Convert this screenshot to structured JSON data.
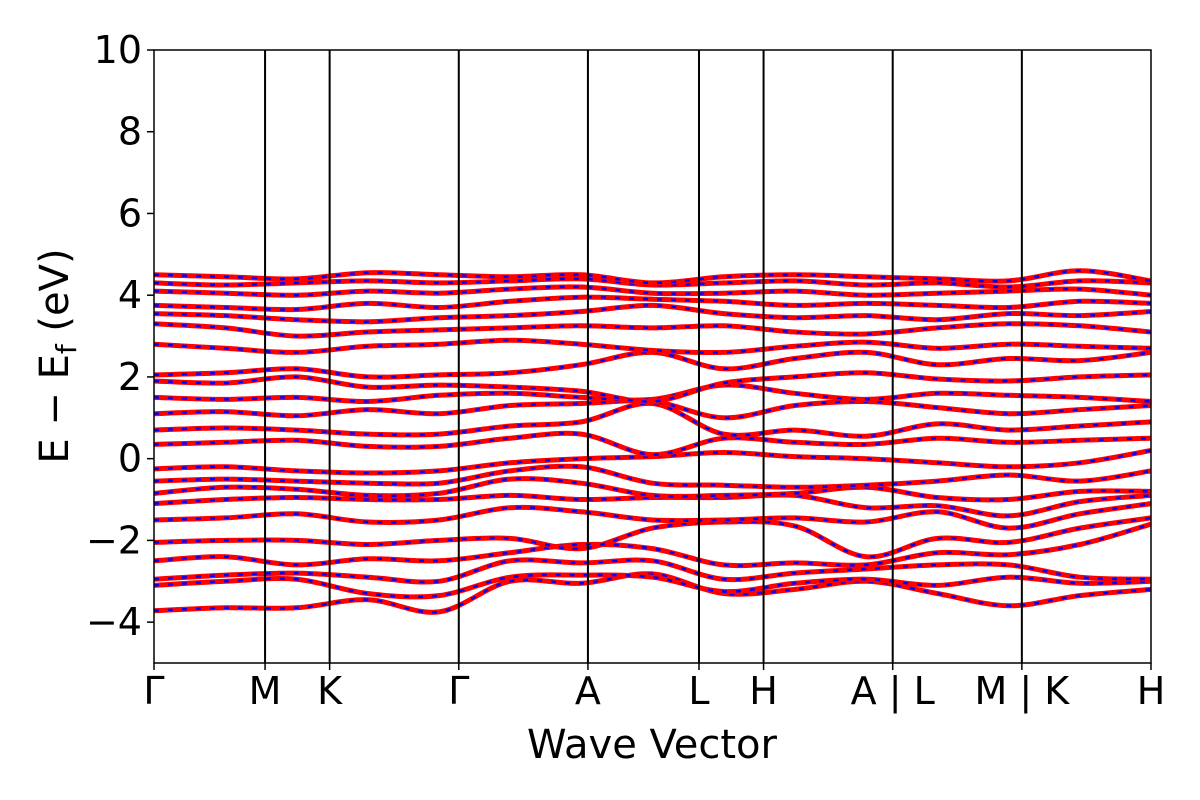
{
  "chart_data": {
    "type": "line",
    "title": "",
    "xlabel": "Wave Vector",
    "ylabel_main": "E − E",
    "ylabel_sub": "f",
    "ylabel_unit": " (eV)",
    "ylim": [
      -5,
      10
    ],
    "yticks": [
      {
        "value": -4,
        "label": "−4"
      },
      {
        "value": -2,
        "label": "−2"
      },
      {
        "value": 0,
        "label": "0"
      },
      {
        "value": 2,
        "label": "2"
      },
      {
        "value": 4,
        "label": "4"
      },
      {
        "value": 6,
        "label": "6"
      },
      {
        "value": 8,
        "label": "8"
      },
      {
        "value": 10,
        "label": "10"
      }
    ],
    "xlim": [
      0,
      7.72
    ],
    "kpoints": [
      {
        "pos": 0.0,
        "label": "Γ"
      },
      {
        "pos": 0.86,
        "label": "M"
      },
      {
        "pos": 1.36,
        "label": "K"
      },
      {
        "pos": 2.36,
        "label": "Γ"
      },
      {
        "pos": 3.36,
        "label": "A"
      },
      {
        "pos": 4.22,
        "label": "L"
      },
      {
        "pos": 4.72,
        "label": "H"
      },
      {
        "pos": 5.72,
        "label": "A | L"
      },
      {
        "pos": 6.72,
        "label": "M | K"
      },
      {
        "pos": 7.72,
        "label": "H"
      }
    ],
    "grid": false,
    "series_colors": {
      "spin_up": "#ff0000",
      "spin_down": "#0000ff"
    },
    "bands": [
      [
        -3.72,
        -3.65,
        -3.65,
        -3.45,
        -3.75,
        -3.0,
        -3.05,
        -2.82,
        -3.3,
        -3.2,
        -3.0,
        -3.3,
        -3.6,
        -3.35,
        -3.2
      ],
      [
        -3.1,
        -3.0,
        -2.95,
        -3.3,
        -3.35,
        -2.9,
        -2.85,
        -2.9,
        -3.25,
        -3.05,
        -2.95,
        -3.1,
        -2.9,
        -3.05,
        -3.0
      ],
      [
        -2.95,
        -2.85,
        -2.8,
        -2.9,
        -3.0,
        -2.5,
        -2.55,
        -2.5,
        -2.95,
        -2.8,
        -2.7,
        -2.6,
        -2.6,
        -2.9,
        -2.95
      ],
      [
        -2.5,
        -2.4,
        -2.6,
        -2.45,
        -2.5,
        -2.3,
        -2.1,
        -2.2,
        -2.6,
        -2.55,
        -2.6,
        -2.3,
        -2.35,
        -2.1,
        -1.6
      ],
      [
        -2.05,
        -2.0,
        -2.0,
        -2.1,
        -2.0,
        -1.95,
        -2.2,
        -1.7,
        -1.55,
        -1.65,
        -2.4,
        -1.95,
        -2.05,
        -1.7,
        -1.45
      ],
      [
        -1.5,
        -1.45,
        -1.35,
        -1.55,
        -1.5,
        -1.2,
        -1.3,
        -1.5,
        -1.5,
        -1.45,
        -1.55,
        -1.3,
        -1.7,
        -1.35,
        -1.1
      ],
      [
        -1.1,
        -1.0,
        -0.95,
        -1.0,
        -1.0,
        -0.9,
        -1.0,
        -0.95,
        -0.95,
        -0.9,
        -1.2,
        -1.15,
        -1.4,
        -1.05,
        -0.9
      ],
      [
        -0.85,
        -0.7,
        -0.75,
        -0.9,
        -0.85,
        -0.5,
        -0.6,
        -0.9,
        -0.9,
        -0.85,
        -0.7,
        -0.95,
        -1.0,
        -0.8,
        -0.8
      ],
      [
        -0.55,
        -0.5,
        -0.55,
        -0.6,
        -0.6,
        -0.3,
        -0.2,
        -0.6,
        -0.65,
        -0.7,
        -0.65,
        -0.55,
        -0.4,
        -0.55,
        -0.3
      ],
      [
        -0.25,
        -0.2,
        -0.3,
        -0.35,
        -0.3,
        -0.1,
        0.0,
        0.05,
        0.15,
        0.05,
        0.0,
        -0.1,
        -0.2,
        -0.1,
        0.2
      ],
      [
        0.35,
        0.4,
        0.45,
        0.3,
        0.3,
        0.5,
        0.6,
        0.1,
        0.5,
        0.4,
        0.35,
        0.5,
        0.4,
        0.45,
        0.5
      ],
      [
        0.7,
        0.75,
        0.7,
        0.6,
        0.6,
        0.8,
        0.9,
        1.35,
        0.6,
        0.7,
        0.55,
        0.85,
        0.7,
        0.8,
        0.9
      ],
      [
        1.1,
        1.15,
        1.05,
        1.2,
        1.1,
        1.3,
        1.35,
        1.4,
        1.0,
        1.3,
        1.4,
        1.25,
        1.1,
        1.2,
        1.3
      ],
      [
        1.5,
        1.45,
        1.5,
        1.4,
        1.55,
        1.6,
        1.5,
        1.45,
        1.8,
        1.6,
        1.45,
        1.6,
        1.55,
        1.5,
        1.4
      ],
      [
        1.9,
        1.85,
        2.0,
        1.75,
        1.8,
        1.75,
        1.65,
        1.4,
        1.85,
        2.0,
        2.1,
        1.95,
        1.9,
        2.0,
        2.05
      ],
      [
        2.05,
        2.1,
        2.2,
        2.0,
        2.05,
        2.1,
        2.3,
        2.6,
        2.2,
        2.45,
        2.6,
        2.3,
        2.45,
        2.4,
        2.6
      ],
      [
        2.8,
        2.7,
        2.6,
        2.75,
        2.8,
        2.9,
        2.8,
        2.65,
        2.6,
        2.75,
        2.85,
        2.7,
        2.8,
        2.75,
        2.7
      ],
      [
        3.3,
        3.2,
        3.0,
        3.1,
        3.15,
        3.2,
        3.25,
        3.2,
        3.25,
        3.1,
        3.05,
        3.2,
        3.3,
        3.25,
        3.1
      ],
      [
        3.55,
        3.5,
        3.4,
        3.35,
        3.45,
        3.5,
        3.6,
        3.75,
        3.55,
        3.45,
        3.5,
        3.4,
        3.55,
        3.5,
        3.6
      ],
      [
        3.75,
        3.7,
        3.65,
        3.8,
        3.7,
        3.85,
        3.95,
        3.9,
        3.85,
        3.75,
        3.8,
        3.75,
        3.7,
        3.85,
        3.8
      ],
      [
        4.1,
        4.05,
        4.0,
        4.1,
        4.05,
        4.15,
        4.2,
        4.05,
        4.05,
        4.1,
        4.0,
        4.05,
        4.1,
        4.15,
        4.0
      ],
      [
        4.3,
        4.25,
        4.3,
        4.35,
        4.3,
        4.35,
        4.4,
        4.25,
        4.3,
        4.35,
        4.25,
        4.3,
        4.2,
        4.35,
        4.3
      ],
      [
        4.5,
        4.45,
        4.4,
        4.55,
        4.5,
        4.45,
        4.5,
        4.3,
        4.45,
        4.5,
        4.45,
        4.4,
        4.35,
        4.6,
        4.35
      ]
    ]
  }
}
